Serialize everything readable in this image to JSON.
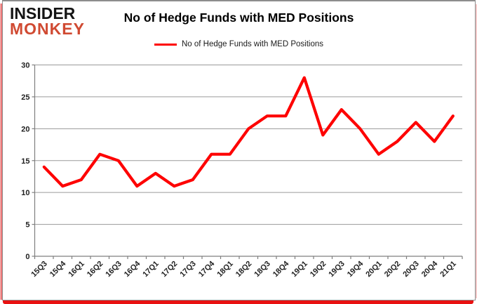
{
  "logo": {
    "line1": "INSIDER",
    "line2": "MONKEY"
  },
  "header": {
    "title": "No of Hedge Funds with MED Positions"
  },
  "legend": {
    "label": "No of Hedge Funds with MED Positions"
  },
  "colors": {
    "series_red": "#fe0000",
    "logo_red": "#d04a32",
    "grid_grey": "#9a9a9a",
    "axis_grey": "#7f7f7f",
    "border_red_glow": "#e81111"
  },
  "chart_data": {
    "type": "line",
    "title": "No of Hedge Funds with MED Positions",
    "legend_entries": [
      "No of Hedge Funds with MED Positions"
    ],
    "legend_position": "top",
    "grid": true,
    "xlabel": "",
    "ylabel": "",
    "ylim": [
      0,
      30
    ],
    "ytick_step": 5,
    "categories": [
      "15Q3",
      "15Q4",
      "16Q1",
      "16Q2",
      "16Q3",
      "16Q4",
      "17Q1",
      "17Q2",
      "17Q3",
      "17Q4",
      "18Q1",
      "18Q2",
      "18Q3",
      "18Q4",
      "19Q1",
      "19Q2",
      "19Q3",
      "19Q4",
      "20Q1",
      "20Q2",
      "20Q3",
      "20Q4",
      "21Q1"
    ],
    "series": [
      {
        "name": "No of Hedge Funds with MED Positions",
        "values": [
          14,
          11,
          12,
          16,
          15,
          11,
          13,
          11,
          12,
          16,
          16,
          20,
          22,
          22,
          28,
          19,
          23,
          20,
          16,
          18,
          21,
          18,
          22
        ]
      }
    ]
  }
}
